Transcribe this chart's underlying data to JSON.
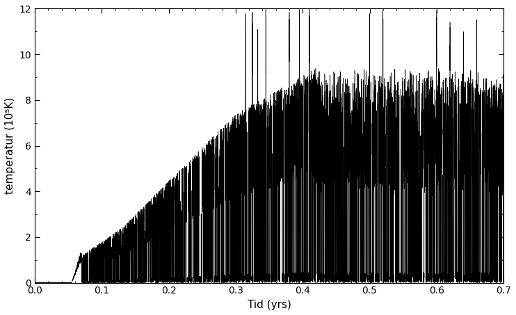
{
  "title": "",
  "xlabel": "Tid (yrs)",
  "ylabel": "temperatur (10⁵K)",
  "xlim": [
    0.0,
    0.7
  ],
  "ylim": [
    0.0,
    12
  ],
  "yticks": [
    0,
    2,
    4,
    6,
    8,
    10,
    12
  ],
  "xticks": [
    0.0,
    0.1,
    0.2,
    0.3,
    0.4,
    0.5,
    0.6,
    0.7
  ],
  "line_color": "black",
  "line_width": 0.4,
  "bg_color": "white",
  "fig_width": 7.42,
  "fig_height": 4.53,
  "dpi": 100,
  "seed": 12345,
  "n_points": 20000
}
